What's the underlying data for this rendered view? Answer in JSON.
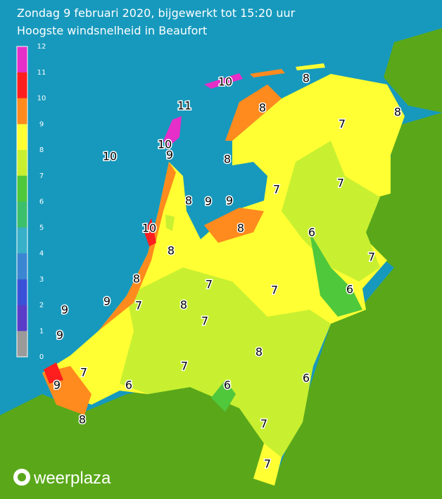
{
  "header": {
    "line1": "Zondag 9 februari 2020, bijgewerkt tot 15:20 uur",
    "line2": "Hoogste windsnelheid in Beaufort"
  },
  "legend": {
    "ticks": [
      0,
      1,
      2,
      3,
      4,
      5,
      6,
      7,
      8,
      9,
      10,
      11,
      12
    ],
    "colors": [
      "#9a9a9a",
      "#5a3cc8",
      "#3a52d8",
      "#3a86d2",
      "#38b0c8",
      "#3cc06c",
      "#50c83c",
      "#c8f030",
      "#ffff33",
      "#ff8a1e",
      "#ff1e1e",
      "#e62ec8",
      "#b455c8"
    ]
  },
  "labels": [
    "10",
    "8",
    "11",
    "8",
    "8",
    "7",
    "10",
    "10",
    "9",
    "8",
    "7",
    "7",
    "8",
    "9",
    "9",
    "10",
    "8",
    "6",
    "8",
    "7",
    "8",
    "7",
    "6",
    "7",
    "9",
    "7",
    "8",
    "9",
    "7",
    "9",
    "8",
    "7",
    "7",
    "6",
    "9",
    "6",
    "6",
    "8",
    "7",
    "7"
  ],
  "logo": "weerplaza"
}
